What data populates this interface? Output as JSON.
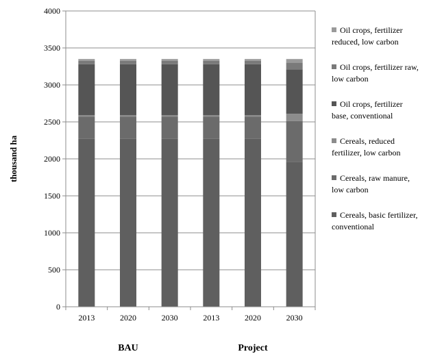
{
  "chart_data": {
    "type": "bar",
    "stacked": true,
    "title": "",
    "xlabel": "",
    "ylabel": "thousand ha",
    "ylim": [
      0,
      4000
    ],
    "yticks": [
      0,
      500,
      1000,
      1500,
      2000,
      2500,
      3000,
      3500,
      4000
    ],
    "grid": true,
    "legend_position": "right",
    "categories": [
      "2013",
      "2020",
      "2030",
      "2013",
      "2020",
      "2030"
    ],
    "groups": [
      {
        "label": "BAU",
        "categories": [
          "2013",
          "2020",
          "2030"
        ]
      },
      {
        "label": "Project",
        "categories": [
          "2013",
          "2020",
          "2030"
        ]
      }
    ],
    "series": [
      {
        "name": "Cereals, basic fertilizer, conventional",
        "color": "#5f5f5f",
        "values": [
          2270,
          2270,
          2270,
          2270,
          2270,
          1960
        ]
      },
      {
        "name": "Cereals, raw manure, low carbon",
        "color": "#6b6b6b",
        "values": [
          300,
          300,
          300,
          300,
          300,
          550
        ]
      },
      {
        "name": "Cereals, reduced fertilizer, low carbon",
        "color": "#8c8c8c",
        "values": [
          20,
          20,
          20,
          20,
          20,
          100
        ]
      },
      {
        "name": "Oil crops, fertilizer base, conventional",
        "color": "#555555",
        "values": [
          690,
          690,
          690,
          690,
          690,
          600
        ]
      },
      {
        "name": "Oil crops, fertilizer raw, low carbon",
        "color": "#7a7a7a",
        "values": [
          45,
          45,
          45,
          45,
          45,
          90
        ]
      },
      {
        "name": "Oil crops, fertilizer reduced, low carbon",
        "color": "#9a9a9a",
        "values": [
          25,
          25,
          25,
          25,
          25,
          50
        ]
      }
    ]
  },
  "legend": {
    "entries": [
      {
        "line1": "Oil crops, fertilizer",
        "line2": "reduced, low carbon",
        "color": "#9a9a9a"
      },
      {
        "line1": "Oil crops, fertilizer raw,",
        "line2": "low carbon",
        "color": "#7a7a7a"
      },
      {
        "line1": "Oil crops, fertilizer",
        "line2": "base, conventional",
        "color": "#555555"
      },
      {
        "line1": "Cereals, reduced",
        "line2": "fertilizer, low carbon",
        "color": "#8c8c8c"
      },
      {
        "line1": "Cereals, raw manure,",
        "line2": "low carbon",
        "color": "#6b6b6b"
      },
      {
        "line1": "Cereals, basic fertilizer,",
        "line2": "conventional",
        "color": "#5f5f5f"
      }
    ]
  }
}
